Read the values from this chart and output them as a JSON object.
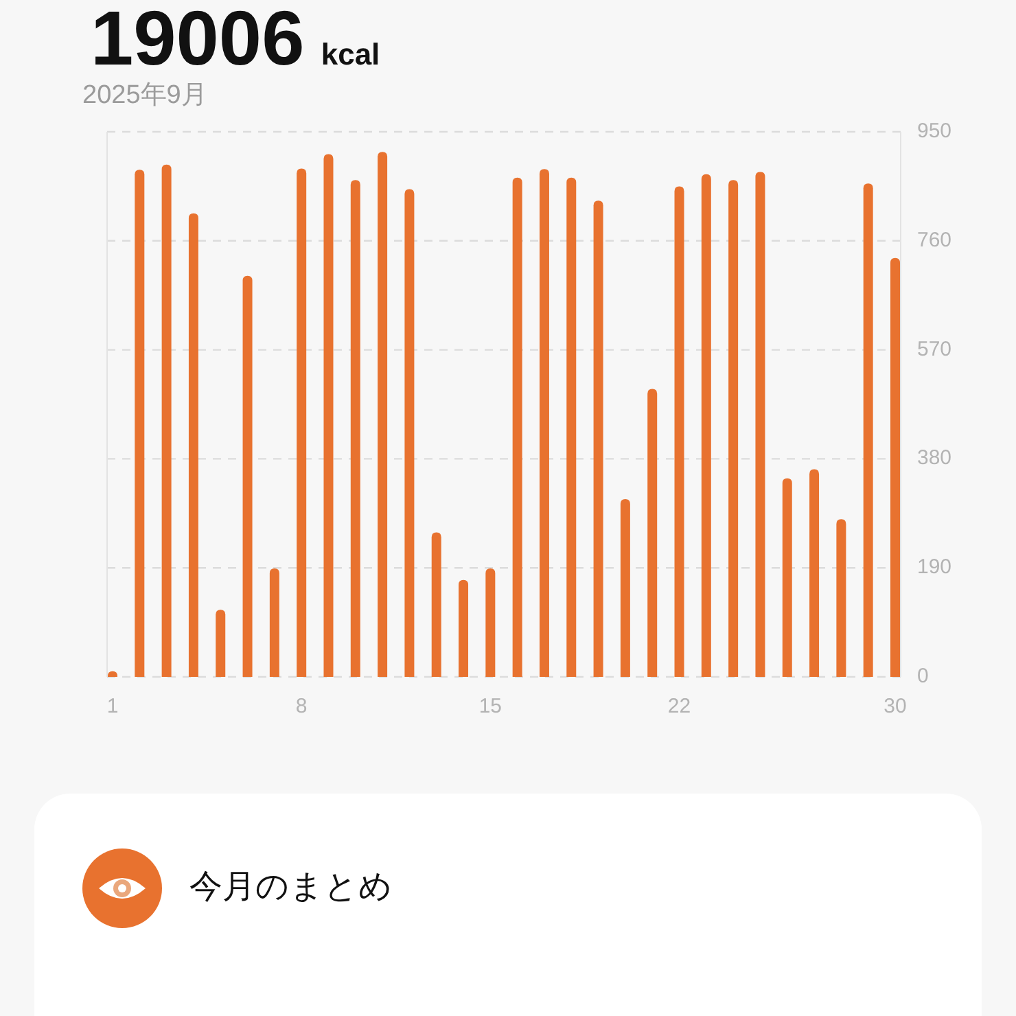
{
  "chart_data": {
    "type": "bar",
    "title": "19006 kcal",
    "subtitle": "2025年9月",
    "annotations": [
      "今月のまとめ"
    ],
    "categories": [
      "1",
      null,
      null,
      null,
      null,
      null,
      null,
      "8",
      null,
      null,
      null,
      null,
      null,
      null,
      "15",
      null,
      null,
      null,
      null,
      null,
      null,
      "22",
      null,
      null,
      null,
      null,
      null,
      null,
      null,
      "30"
    ],
    "values": [
      10,
      884,
      893,
      808,
      117,
      699,
      189,
      886,
      911,
      866,
      915,
      850,
      252,
      169,
      189,
      870,
      885,
      870,
      830,
      310,
      502,
      855,
      876,
      866,
      880,
      346,
      362,
      275,
      860,
      730
    ],
    "color": "#e8722f",
    "ylim": [
      0,
      950
    ],
    "yticks": [
      0,
      190,
      380,
      570,
      760,
      950
    ],
    "grid": "y"
  }
}
